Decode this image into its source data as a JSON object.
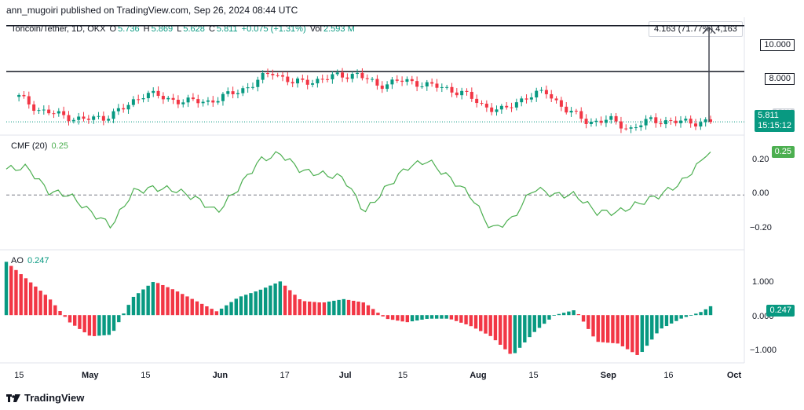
{
  "header": {
    "published": "ann_mugoiri published on TradingView.com, Sep 26, 2024 08:44 UTC"
  },
  "brand": {
    "name": "TradingView"
  },
  "colors": {
    "up": "#089981",
    "down": "#f23645",
    "cmf": "#4caf50",
    "line": "#131722"
  },
  "main_legend": {
    "symbol": "Toncoin/Tether, 1D, OKX",
    "o_label": "O",
    "o": "5.736",
    "h_label": "H",
    "h": "5.869",
    "l_label": "L",
    "l": "5.628",
    "c_label": "C",
    "c": "5.811",
    "change": "+0.075 (+1.31%)",
    "vol_label": "Vol",
    "vol": "2.593 M"
  },
  "price_axis": {
    "levels": [
      "10.000",
      "8.000"
    ],
    "current_price": "5.811",
    "countdown": "15:15:12",
    "hidden_label": "6.000"
  },
  "measure_tooltip": "4.163 (71.77%) 4,163",
  "cmf": {
    "legend_name": "CMF (20)",
    "legend_value": "0.25",
    "current": "0.25",
    "ticks": [
      "0.20",
      "0.00",
      "−0.20"
    ]
  },
  "ao": {
    "legend_name": "AO",
    "legend_value": "0.247",
    "current": "0.247",
    "ticks": [
      "1.000",
      "0.000",
      "−1.000"
    ]
  },
  "time_axis": [
    "15",
    "May",
    "15",
    "Jun",
    "17",
    "Jul",
    "15",
    "Aug",
    "15",
    "Sep",
    "16",
    "Oct"
  ],
  "chart_data": [
    {
      "type": "line",
      "name": "Toncoin/Tether 1D close (approx.)",
      "x": [
        "2024-04-15",
        "2024-04-20",
        "2024-04-25",
        "2024-04-30",
        "2024-05-05",
        "2024-05-10",
        "2024-05-15",
        "2024-05-20",
        "2024-05-25",
        "2024-05-30",
        "2024-06-04",
        "2024-06-09",
        "2024-06-14",
        "2024-06-19",
        "2024-06-24",
        "2024-06-29",
        "2024-07-04",
        "2024-07-09",
        "2024-07-14",
        "2024-07-19",
        "2024-07-24",
        "2024-07-29",
        "2024-08-03",
        "2024-08-08",
        "2024-08-13",
        "2024-08-18",
        "2024-08-23",
        "2024-08-28",
        "2024-09-02",
        "2024-09-07",
        "2024-09-12",
        "2024-09-17",
        "2024-09-22",
        "2024-09-26"
      ],
      "values": [
        6.9,
        6.3,
        6.1,
        5.9,
        6.0,
        6.4,
        7.1,
        6.8,
        6.7,
        6.7,
        7.0,
        7.4,
        8.0,
        7.5,
        7.6,
        7.8,
        7.9,
        7.4,
        7.6,
        7.5,
        7.3,
        7.1,
        6.5,
        6.3,
        6.9,
        7.1,
        6.3,
        5.8,
        5.9,
        5.5,
        5.9,
        5.8,
        5.8,
        5.81
      ],
      "levels": [
        10.0,
        8.0
      ],
      "measure": {
        "from": 5.811,
        "to": 10.0,
        "change": 4.163,
        "change_pct": 71.77
      },
      "ylim": [
        5.3,
        10.3
      ]
    },
    {
      "type": "line",
      "name": "CMF (20)",
      "x": [
        "2024-04-12",
        "2024-04-17",
        "2024-04-22",
        "2024-04-27",
        "2024-05-02",
        "2024-05-07",
        "2024-05-12",
        "2024-05-17",
        "2024-05-22",
        "2024-05-27",
        "2024-06-01",
        "2024-06-06",
        "2024-06-11",
        "2024-06-16",
        "2024-06-21",
        "2024-06-26",
        "2024-07-01",
        "2024-07-06",
        "2024-07-11",
        "2024-07-16",
        "2024-07-21",
        "2024-07-26",
        "2024-07-31",
        "2024-08-05",
        "2024-08-10",
        "2024-08-15",
        "2024-08-20",
        "2024-08-25",
        "2024-08-30",
        "2024-09-04",
        "2024-09-09",
        "2024-09-14",
        "2024-09-19",
        "2024-09-24",
        "2024-09-26"
      ],
      "values": [
        0.15,
        0.16,
        0.02,
        0.0,
        -0.1,
        -0.18,
        0.02,
        0.04,
        0.03,
        -0.02,
        -0.1,
        0.04,
        0.2,
        0.24,
        0.14,
        0.12,
        0.1,
        -0.1,
        0.04,
        0.16,
        0.2,
        0.1,
        0.0,
        -0.2,
        -0.14,
        0.04,
        0.0,
        0.0,
        -0.1,
        -0.1,
        -0.05,
        0.0,
        0.07,
        0.2,
        0.25
      ],
      "zero_line": 0.0,
      "ylim": [
        -0.3,
        0.32
      ]
    },
    {
      "type": "bar",
      "name": "AO",
      "x": [
        "2024-04-12",
        "2024-04-17",
        "2024-04-22",
        "2024-04-27",
        "2024-05-02",
        "2024-05-07",
        "2024-05-12",
        "2024-05-17",
        "2024-05-22",
        "2024-05-27",
        "2024-06-01",
        "2024-06-06",
        "2024-06-11",
        "2024-06-16",
        "2024-06-21",
        "2024-06-26",
        "2024-07-01",
        "2024-07-06",
        "2024-07-11",
        "2024-07-16",
        "2024-07-21",
        "2024-07-26",
        "2024-07-31",
        "2024-08-05",
        "2024-08-10",
        "2024-08-15",
        "2024-08-20",
        "2024-08-25",
        "2024-08-30",
        "2024-09-04",
        "2024-09-09",
        "2024-09-14",
        "2024-09-19",
        "2024-09-24",
        "2024-09-26"
      ],
      "values": [
        1.5,
        1.0,
        0.5,
        -0.2,
        -0.6,
        -0.55,
        0.5,
        0.95,
        0.7,
        0.4,
        0.1,
        0.5,
        0.7,
        0.95,
        0.4,
        0.35,
        0.45,
        0.35,
        -0.1,
        -0.2,
        -0.1,
        -0.1,
        -0.3,
        -0.6,
        -1.15,
        -0.5,
        0.0,
        0.15,
        -0.75,
        -0.8,
        -1.15,
        -0.4,
        -0.1,
        0.1,
        0.25
      ],
      "ylim": [
        -1.3,
        1.75
      ]
    }
  ]
}
